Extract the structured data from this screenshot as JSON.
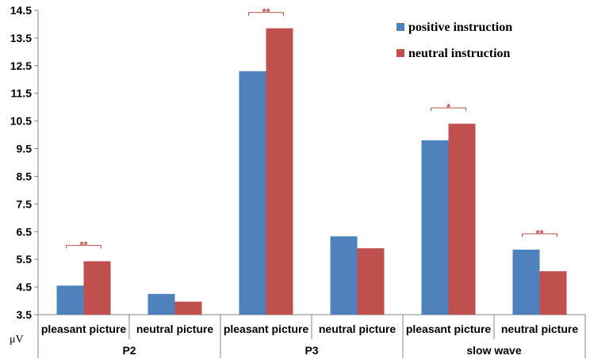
{
  "chart_data": {
    "type": "bar",
    "groups": [
      "P2",
      "P3",
      "slow wave"
    ],
    "categories": [
      "pleasant picture",
      "neutral picture",
      "pleasant picture",
      "neutral picture",
      "pleasant picture",
      "neutral picture"
    ],
    "series": [
      {
        "name": "positive instruction",
        "color": "#4f81bd",
        "values": [
          4.55,
          4.25,
          12.3,
          6.33,
          9.8,
          5.85
        ]
      },
      {
        "name": "neutral instruction",
        "color": "#c0504d",
        "values": [
          5.43,
          3.97,
          13.85,
          5.9,
          10.4,
          5.07
        ]
      }
    ],
    "ylim": [
      3.5,
      14.5
    ],
    "yticks": [
      "3.5",
      "4.5",
      "5.5",
      "6.5",
      "7.5",
      "8.5",
      "9.5",
      "10.5",
      "11.5",
      "12.5",
      "13.5",
      "14.5"
    ],
    "ylabel": "μV",
    "legend_position": "top-right",
    "significance": [
      {
        "category_index": 0,
        "label": "**"
      },
      {
        "category_index": 2,
        "label": "**"
      },
      {
        "category_index": 4,
        "label": "*"
      },
      {
        "category_index": 5,
        "label": "**"
      }
    ],
    "grid": false
  }
}
